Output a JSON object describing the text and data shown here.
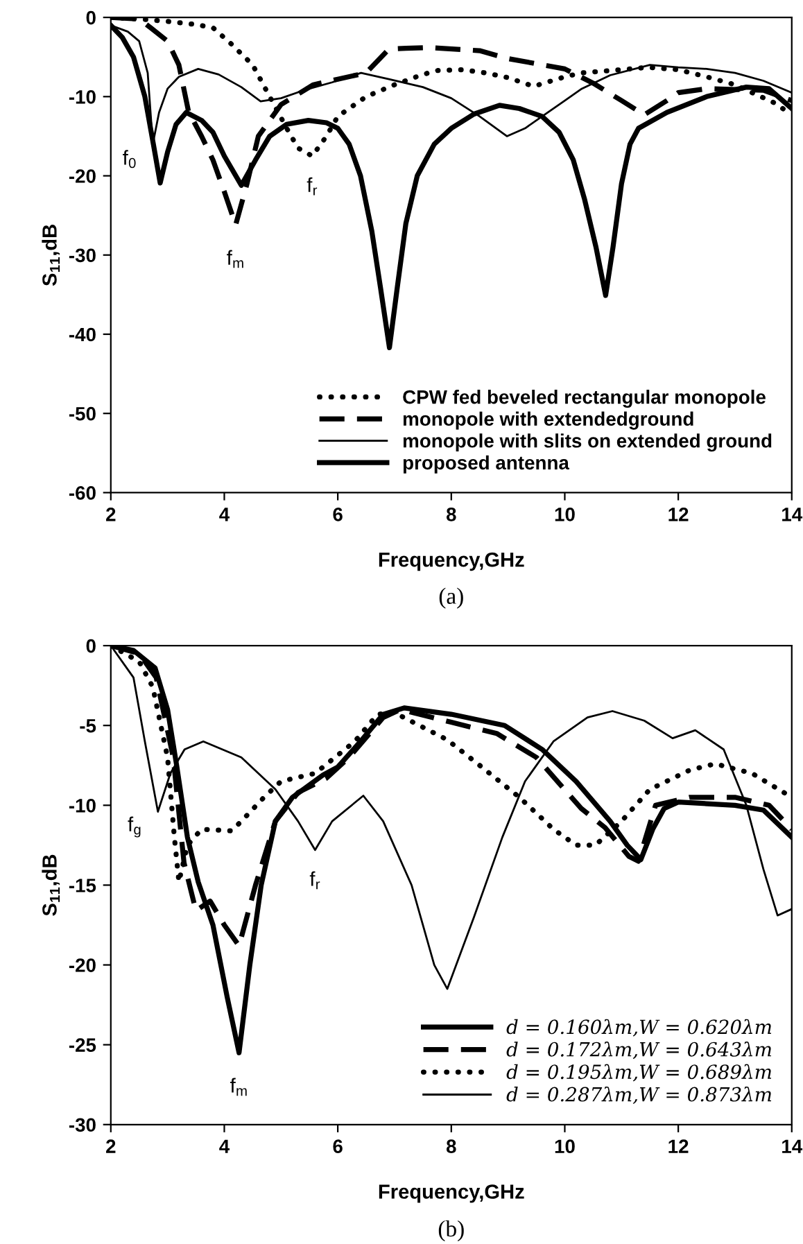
{
  "chart_data": [
    {
      "type": "line",
      "title": "(a)",
      "xlabel": "Frequency,GHz",
      "ylabel": "S$_{11}$,dB",
      "xlim": [
        2,
        14
      ],
      "xticks": [
        2,
        4,
        6,
        8,
        10,
        12,
        14
      ],
      "ylim": [
        -60,
        0
      ],
      "yticks": [
        -60,
        -50,
        -40,
        -30,
        -20,
        -10,
        0
      ],
      "grid": false,
      "legend": "bottom right",
      "annotations": [
        {
          "text": "f$_{0}$",
          "x": 2.74,
          "y": -16
        },
        {
          "text": "f$_{m}$",
          "x": 4.2,
          "y": -26.2
        },
        {
          "text": "f$_{r}$",
          "x": 5.55,
          "y": -17.5
        }
      ],
      "series": [
        {
          "name": "CPW fed beveled rectangular monopole",
          "color": "#000000",
          "line_style": "dotted",
          "x": [
            2,
            2.5,
            3,
            3.5,
            3.8,
            4.13,
            4.5,
            4.8,
            5.1,
            5.3,
            5.55,
            5.8,
            6.0,
            6.5,
            7.0,
            7.5,
            7.76,
            8.2,
            8.6,
            9.0,
            9.45,
            10.0,
            10.3,
            11.0,
            11.47,
            12.0,
            12.5,
            13.0,
            13.3,
            13.7,
            14
          ],
          "values": [
            0,
            -0.2,
            -0.5,
            -0.9,
            -1.3,
            -3.4,
            -6,
            -10,
            -14,
            -16.5,
            -17.5,
            -15,
            -12.5,
            -10,
            -8.5,
            -7.2,
            -6.7,
            -6.6,
            -7,
            -7.6,
            -8.7,
            -7.5,
            -7,
            -6.6,
            -6.3,
            -6.6,
            -7.5,
            -8.5,
            -9.5,
            -10.8,
            -12.3
          ]
        },
        {
          "name": "monopole with extendedground",
          "color": "#000000",
          "line_style": "dashed",
          "x": [
            2,
            2.5,
            2.7,
            3.0,
            3.2,
            3.37,
            3.6,
            3.8,
            4.0,
            4.2,
            4.4,
            4.6,
            5.0,
            5.57,
            6.0,
            6.5,
            6.9,
            7.2,
            7.6,
            8.5,
            9.0,
            10.0,
            10.5,
            11.0,
            11.4,
            11.8,
            12.0,
            12.5,
            13.5,
            14
          ],
          "values": [
            0,
            -0.2,
            -1.3,
            -3,
            -6,
            -11.9,
            -15,
            -18,
            -22,
            -26.2,
            -21,
            -15,
            -11,
            -8.5,
            -7.8,
            -7,
            -4,
            -3.9,
            -3.8,
            -4.2,
            -5.2,
            -6.5,
            -8.3,
            -10.5,
            -12.3,
            -10.5,
            -9.5,
            -9,
            -9.2,
            -10.5
          ]
        },
        {
          "name": "monopole with slits on extended ground",
          "color": "#000000",
          "line_style": "solid",
          "x": [
            2,
            2.3,
            2.5,
            2.65,
            2.74,
            2.85,
            3.0,
            3.2,
            3.54,
            3.9,
            4.3,
            4.64,
            5.0,
            5.4,
            5.9,
            6.41,
            6.9,
            7.5,
            8.0,
            8.5,
            8.98,
            9.3,
            9.6,
            10.0,
            10.3,
            10.8,
            11.5,
            12.0,
            12.5,
            13.0,
            13.5,
            14
          ],
          "values": [
            -1,
            -1.8,
            -3,
            -7,
            -16,
            -12,
            -9,
            -7.5,
            -6.5,
            -7.2,
            -8.8,
            -10.6,
            -10.2,
            -9.2,
            -8.2,
            -7,
            -7.8,
            -8.8,
            -10.2,
            -12.5,
            -15,
            -14,
            -12.5,
            -10.5,
            -9,
            -7.3,
            -6,
            -6.3,
            -6.5,
            -7,
            -8,
            -9.5
          ]
        },
        {
          "name": "proposed antenna",
          "color": "#000000",
          "line_style": "solid",
          "x": [
            2,
            2.2,
            2.4,
            2.6,
            2.75,
            2.87,
            3.0,
            3.15,
            3.33,
            3.6,
            3.8,
            4.0,
            4.3,
            4.55,
            4.8,
            5.1,
            5.48,
            5.8,
            6.0,
            6.2,
            6.4,
            6.6,
            6.75,
            6.91,
            7.05,
            7.2,
            7.4,
            7.7,
            8.0,
            8.4,
            8.85,
            9.2,
            9.6,
            9.9,
            10.15,
            10.35,
            10.55,
            10.72,
            10.85,
            11.0,
            11.15,
            11.3,
            11.8,
            12.5,
            13.2,
            13.6,
            14
          ],
          "values": [
            -1,
            -2.5,
            -5,
            -10,
            -16,
            -20.9,
            -17,
            -13.5,
            -12,
            -13,
            -14.5,
            -17.5,
            -21.2,
            -18,
            -15,
            -13.5,
            -13,
            -13.3,
            -14,
            -16,
            -20,
            -27,
            -34,
            -41.7,
            -34,
            -26,
            -20,
            -16,
            -14,
            -12.2,
            -11.1,
            -11.5,
            -12.5,
            -14.5,
            -18,
            -23,
            -29,
            -35.1,
            -29,
            -21,
            -16,
            -14,
            -12,
            -10,
            -8.8,
            -9,
            -11.5
          ]
        }
      ]
    },
    {
      "type": "line",
      "title": "(b)",
      "xlabel": "Frequency,GHz",
      "ylabel": "S$_{11}$,dB",
      "xlim": [
        2,
        14
      ],
      "xticks": [
        2,
        4,
        6,
        8,
        10,
        12,
        14
      ],
      "ylim": [
        -30,
        0
      ],
      "yticks": [
        -30,
        -25,
        -20,
        -15,
        -10,
        -5,
        0
      ],
      "grid": false,
      "legend": "bottom right",
      "annotations": [
        {
          "text": "f$_{g}$",
          "x": 2.83,
          "y": -10.4
        },
        {
          "text": "f$_{m}$",
          "x": 4.26,
          "y": -25.5
        },
        {
          "text": "f$_{r}$",
          "x": 5.6,
          "y": -12.8
        }
      ],
      "series": [
        {
          "name": "d = 0.160λm,W = 0.620λm",
          "color": "#000000",
          "line_style": "solid",
          "x": [
            2,
            2.4,
            2.78,
            3.0,
            3.16,
            3.35,
            3.54,
            3.8,
            4.05,
            4.26,
            4.45,
            4.65,
            4.9,
            5.2,
            5.74,
            6.0,
            6.4,
            6.8,
            7.17,
            8.0,
            8.94,
            9.6,
            10.2,
            10.8,
            11.1,
            11.34,
            11.55,
            11.75,
            12.0,
            13.0,
            13.5,
            14
          ],
          "values": [
            0,
            -0.3,
            -1.4,
            -4,
            -7.5,
            -12,
            -14.8,
            -17.5,
            -22,
            -25.5,
            -20,
            -15,
            -11,
            -9.5,
            -8.1,
            -7.6,
            -6,
            -4.3,
            -3.9,
            -4.3,
            -5,
            -6.5,
            -8.5,
            -11,
            -12.5,
            -13.4,
            -11.5,
            -10.2,
            -9.8,
            -10,
            -10.3,
            -12
          ]
        },
        {
          "name": "d = 0.172λm,W = 0.643λm",
          "color": "#000000",
          "line_style": "dashed",
          "x": [
            2,
            2.5,
            2.8,
            3.1,
            3.29,
            3.5,
            3.75,
            4.0,
            4.26,
            4.55,
            4.9,
            5.3,
            5.8,
            6.2,
            6.8,
            7.1,
            8.0,
            8.8,
            9.5,
            10.29,
            10.71,
            11.13,
            11.3,
            11.6,
            12.2,
            13.0,
            13.6,
            14
          ],
          "values": [
            0,
            -0.5,
            -2,
            -7,
            -13.6,
            -16.6,
            -16,
            -17.5,
            -18.8,
            -15,
            -11,
            -9.2,
            -8.3,
            -7,
            -4.5,
            -4,
            -4.8,
            -5.5,
            -7,
            -10.2,
            -11.4,
            -13.2,
            -13.5,
            -10,
            -9.5,
            -9.5,
            -10,
            -11.5
          ]
        },
        {
          "name": "d = 0.195λm,W = 0.689λm",
          "color": "#000000",
          "line_style": "dotted",
          "x": [
            2,
            2.5,
            2.74,
            3.0,
            3.12,
            3.2,
            3.35,
            3.6,
            4.13,
            4.3,
            4.7,
            5.0,
            5.6,
            6.3,
            6.7,
            7.0,
            7.93,
            8.5,
            9.2,
            9.8,
            10.2,
            10.54,
            11.0,
            11.5,
            12.2,
            12.65,
            13.3,
            14
          ],
          "values": [
            0,
            -1,
            -2.6,
            -7,
            -12,
            -14.8,
            -12.5,
            -11.5,
            -11.6,
            -11,
            -9.5,
            -8.5,
            -8,
            -6,
            -4.3,
            -4.2,
            -5.9,
            -7.5,
            -9.5,
            -11.5,
            -12.5,
            -12.5,
            -11,
            -9,
            -7.8,
            -7.4,
            -8,
            -9.5
          ]
        },
        {
          "name": "d = 0.287λm,W = 0.873λm",
          "color": "#000000",
          "line_style": "solid",
          "x": [
            2,
            2.4,
            2.6,
            2.83,
            3.05,
            3.3,
            3.63,
            4.3,
            4.9,
            5.3,
            5.6,
            5.9,
            6.45,
            6.8,
            7.3,
            7.7,
            7.93,
            8.4,
            8.9,
            9.3,
            9.8,
            10.4,
            10.84,
            11.4,
            11.9,
            12.3,
            12.8,
            13.2,
            13.5,
            13.75,
            14
          ],
          "values": [
            0,
            -2,
            -6,
            -10.4,
            -8,
            -6.5,
            -6,
            -7,
            -9,
            -11,
            -12.8,
            -11,
            -9.4,
            -11,
            -15,
            -20,
            -21.5,
            -17,
            -12,
            -8.5,
            -6,
            -4.5,
            -4.1,
            -4.7,
            -5.8,
            -5.3,
            -6.5,
            -10,
            -14,
            -16.9,
            -16.5
          ]
        }
      ]
    }
  ]
}
